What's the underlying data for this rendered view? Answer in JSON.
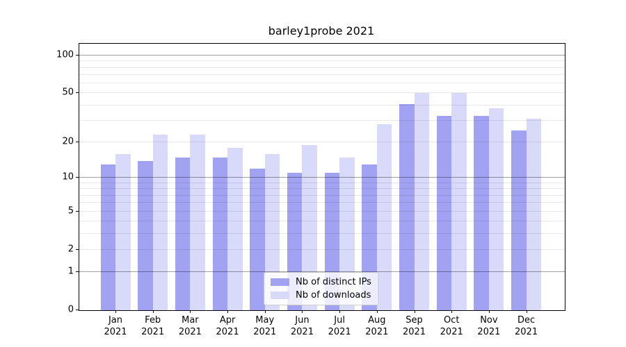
{
  "title": "barley1probe 2021",
  "chart_data": {
    "type": "bar",
    "title": "barley1probe 2021",
    "categories": [
      "Jan 2021",
      "Feb 2021",
      "Mar 2021",
      "Apr 2021",
      "May 2021",
      "Jun 2021",
      "Jul 2021",
      "Aug 2021",
      "Sep 2021",
      "Oct 2021",
      "Nov 2021",
      "Dec 2021"
    ],
    "x_tick_months": [
      "Jan",
      "Feb",
      "Mar",
      "Apr",
      "May",
      "Jun",
      "Jul",
      "Aug",
      "Sep",
      "Oct",
      "Nov",
      "Dec"
    ],
    "x_tick_year": "2021",
    "series": [
      {
        "name": "Nb of distinct IPs",
        "color": "#a2a2f2",
        "values": [
          13,
          14,
          15,
          15,
          12,
          11,
          11,
          13,
          41,
          33,
          33,
          25
        ]
      },
      {
        "name": "Nb of downloads",
        "color": "#d9d9fa",
        "values": [
          16,
          23,
          23,
          18,
          16,
          19,
          15,
          28,
          50,
          50,
          38,
          31
        ]
      }
    ],
    "xlabel": "",
    "ylabel": "",
    "yscale": "log1p",
    "ylim": [
      0,
      124
    ],
    "y_ticks": [
      0,
      1,
      2,
      5,
      10,
      20,
      50,
      100
    ],
    "y_tick_labels": [
      "0",
      "1",
      "2",
      "5",
      "10",
      "20",
      "50",
      "100"
    ],
    "y_minor_gridlines": [
      2,
      3,
      4,
      5,
      6,
      7,
      8,
      9,
      20,
      30,
      40,
      50,
      60,
      70,
      80,
      90
    ],
    "y_major_gridlines": [
      1,
      10,
      100
    ],
    "grid": true,
    "legend_position": "lower center",
    "legend": [
      "Nb of distinct IPs",
      "Nb of downloads"
    ],
    "background_color": "#ffffff",
    "spine_color": "#000000"
  }
}
